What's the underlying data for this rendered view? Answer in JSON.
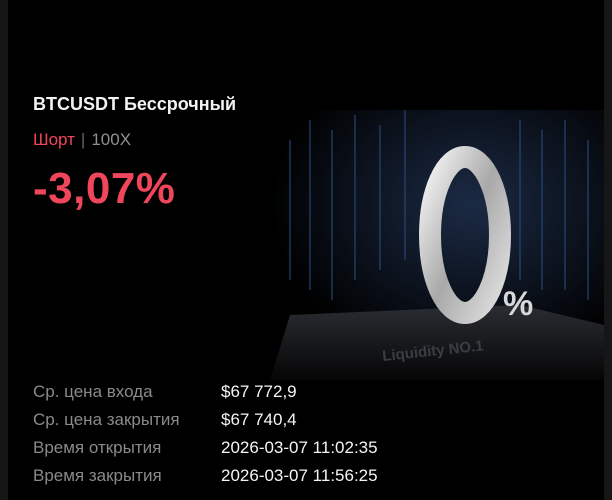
{
  "position": {
    "symbol_title": "BTCUSDT Бессрочный",
    "side": "Шорт",
    "leverage": "100X",
    "pnl_percent": "-3,07%"
  },
  "banner": {
    "big_text": "0",
    "percent_sign": "%",
    "pedestal_text": "Liquidity NO.1"
  },
  "details": [
    {
      "label": "Ср. цена входа",
      "value": "$67 772,9"
    },
    {
      "label": "Ср. цена закрытия",
      "value": "$67 740,4"
    },
    {
      "label": "Время открытия",
      "value": "2026-03-07 11:02:35"
    },
    {
      "label": "Время закрытия",
      "value": "2026-03-07 11:56:25"
    }
  ],
  "colors": {
    "negative": "#f0465c",
    "background": "#000000"
  }
}
